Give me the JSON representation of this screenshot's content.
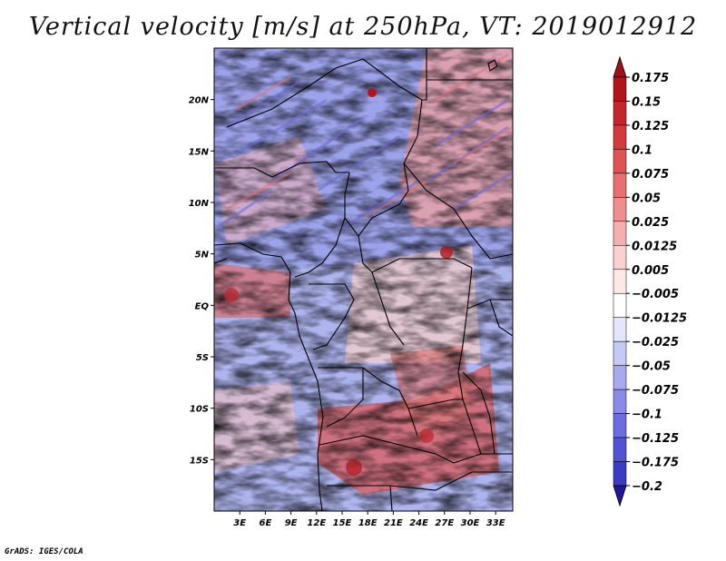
{
  "title": "Vertical velocity [m/s] at 250hPa, VT: 2019012912",
  "credit": "GrADS: IGES/COLA",
  "map": {
    "lon_range": [
      0,
      35
    ],
    "lat_range": [
      -20,
      25
    ],
    "lat_ticks": [
      {
        "value": 20,
        "label": "20N"
      },
      {
        "value": 15,
        "label": "15N"
      },
      {
        "value": 10,
        "label": "10N"
      },
      {
        "value": 5,
        "label": "5N"
      },
      {
        "value": 0,
        "label": "EQ"
      },
      {
        "value": -5,
        "label": "5S"
      },
      {
        "value": -10,
        "label": "10S"
      },
      {
        "value": -15,
        "label": "15S"
      }
    ],
    "lon_ticks": [
      {
        "value": 3,
        "label": "3E"
      },
      {
        "value": 6,
        "label": "6E"
      },
      {
        "value": 9,
        "label": "9E"
      },
      {
        "value": 12,
        "label": "12E"
      },
      {
        "value": 15,
        "label": "15E"
      },
      {
        "value": 18,
        "label": "18E"
      },
      {
        "value": 21,
        "label": "21E"
      },
      {
        "value": 24,
        "label": "24E"
      },
      {
        "value": 27,
        "label": "27E"
      },
      {
        "value": 30,
        "label": "30E"
      },
      {
        "value": 33,
        "label": "33E"
      }
    ]
  },
  "colorbar": {
    "levels": [
      {
        "label": "0.175",
        "color": "#b0151b"
      },
      {
        "label": "0.15",
        "color": "#c1272d"
      },
      {
        "label": "0.125",
        "color": "#d13b3b"
      },
      {
        "label": "0.1",
        "color": "#de5454"
      },
      {
        "label": "0.075",
        "color": "#e87070"
      },
      {
        "label": "0.05",
        "color": "#f08e8e"
      },
      {
        "label": "0.025",
        "color": "#f6afaf"
      },
      {
        "label": "0.0125",
        "color": "#fad0d0"
      },
      {
        "label": "0.005",
        "color": "#fde8e8"
      },
      {
        "label": "-0.005",
        "color": "#ffffff"
      },
      {
        "label": "-0.0125",
        "color": "#e6e6fb"
      },
      {
        "label": "-0.025",
        "color": "#c8c8f6"
      },
      {
        "label": "-0.05",
        "color": "#a9a9f0"
      },
      {
        "label": "-0.075",
        "color": "#8a8ae8"
      },
      {
        "label": "-0.1",
        "color": "#6d6de0"
      },
      {
        "label": "-0.125",
        "color": "#5252d4"
      },
      {
        "label": "-0.175",
        "color": "#3b3bc4"
      },
      {
        "label": "-0.2",
        "color": "#2a24a8"
      }
    ],
    "top_color": "#a01018",
    "bottom_color": "#1e1894"
  }
}
